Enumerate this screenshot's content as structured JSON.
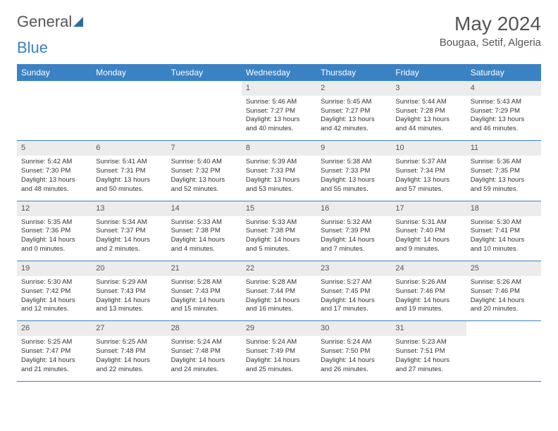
{
  "logo": {
    "text1": "General",
    "text2": "Blue"
  },
  "title": "May 2024",
  "location": "Bougaa, Setif, Algeria",
  "weekdays": [
    "Sunday",
    "Monday",
    "Tuesday",
    "Wednesday",
    "Thursday",
    "Friday",
    "Saturday"
  ],
  "colors": {
    "header_bg": "#3b82c4",
    "header_text": "#ffffff",
    "daynum_bg": "#ececec",
    "border": "#3b82c4",
    "text": "#333333",
    "title_text": "#555555"
  },
  "rows": [
    {
      "nums": [
        "",
        "",
        "",
        "1",
        "2",
        "3",
        "4"
      ],
      "cells": [
        null,
        null,
        null,
        {
          "sunrise": "5:46 AM",
          "sunset": "7:27 PM",
          "daylight": "13 hours and 40 minutes."
        },
        {
          "sunrise": "5:45 AM",
          "sunset": "7:27 PM",
          "daylight": "13 hours and 42 minutes."
        },
        {
          "sunrise": "5:44 AM",
          "sunset": "7:28 PM",
          "daylight": "13 hours and 44 minutes."
        },
        {
          "sunrise": "5:43 AM",
          "sunset": "7:29 PM",
          "daylight": "13 hours and 46 minutes."
        }
      ]
    },
    {
      "nums": [
        "5",
        "6",
        "7",
        "8",
        "9",
        "10",
        "11"
      ],
      "cells": [
        {
          "sunrise": "5:42 AM",
          "sunset": "7:30 PM",
          "daylight": "13 hours and 48 minutes."
        },
        {
          "sunrise": "5:41 AM",
          "sunset": "7:31 PM",
          "daylight": "13 hours and 50 minutes."
        },
        {
          "sunrise": "5:40 AM",
          "sunset": "7:32 PM",
          "daylight": "13 hours and 52 minutes."
        },
        {
          "sunrise": "5:39 AM",
          "sunset": "7:33 PM",
          "daylight": "13 hours and 53 minutes."
        },
        {
          "sunrise": "5:38 AM",
          "sunset": "7:33 PM",
          "daylight": "13 hours and 55 minutes."
        },
        {
          "sunrise": "5:37 AM",
          "sunset": "7:34 PM",
          "daylight": "13 hours and 57 minutes."
        },
        {
          "sunrise": "5:36 AM",
          "sunset": "7:35 PM",
          "daylight": "13 hours and 59 minutes."
        }
      ]
    },
    {
      "nums": [
        "12",
        "13",
        "14",
        "15",
        "16",
        "17",
        "18"
      ],
      "cells": [
        {
          "sunrise": "5:35 AM",
          "sunset": "7:36 PM",
          "daylight": "14 hours and 0 minutes."
        },
        {
          "sunrise": "5:34 AM",
          "sunset": "7:37 PM",
          "daylight": "14 hours and 2 minutes."
        },
        {
          "sunrise": "5:33 AM",
          "sunset": "7:38 PM",
          "daylight": "14 hours and 4 minutes."
        },
        {
          "sunrise": "5:33 AM",
          "sunset": "7:38 PM",
          "daylight": "14 hours and 5 minutes."
        },
        {
          "sunrise": "5:32 AM",
          "sunset": "7:39 PM",
          "daylight": "14 hours and 7 minutes."
        },
        {
          "sunrise": "5:31 AM",
          "sunset": "7:40 PM",
          "daylight": "14 hours and 9 minutes."
        },
        {
          "sunrise": "5:30 AM",
          "sunset": "7:41 PM",
          "daylight": "14 hours and 10 minutes."
        }
      ]
    },
    {
      "nums": [
        "19",
        "20",
        "21",
        "22",
        "23",
        "24",
        "25"
      ],
      "cells": [
        {
          "sunrise": "5:30 AM",
          "sunset": "7:42 PM",
          "daylight": "14 hours and 12 minutes."
        },
        {
          "sunrise": "5:29 AM",
          "sunset": "7:43 PM",
          "daylight": "14 hours and 13 minutes."
        },
        {
          "sunrise": "5:28 AM",
          "sunset": "7:43 PM",
          "daylight": "14 hours and 15 minutes."
        },
        {
          "sunrise": "5:28 AM",
          "sunset": "7:44 PM",
          "daylight": "14 hours and 16 minutes."
        },
        {
          "sunrise": "5:27 AM",
          "sunset": "7:45 PM",
          "daylight": "14 hours and 17 minutes."
        },
        {
          "sunrise": "5:26 AM",
          "sunset": "7:46 PM",
          "daylight": "14 hours and 19 minutes."
        },
        {
          "sunrise": "5:26 AM",
          "sunset": "7:46 PM",
          "daylight": "14 hours and 20 minutes."
        }
      ]
    },
    {
      "nums": [
        "26",
        "27",
        "28",
        "29",
        "30",
        "31",
        ""
      ],
      "cells": [
        {
          "sunrise": "5:25 AM",
          "sunset": "7:47 PM",
          "daylight": "14 hours and 21 minutes."
        },
        {
          "sunrise": "5:25 AM",
          "sunset": "7:48 PM",
          "daylight": "14 hours and 22 minutes."
        },
        {
          "sunrise": "5:24 AM",
          "sunset": "7:48 PM",
          "daylight": "14 hours and 24 minutes."
        },
        {
          "sunrise": "5:24 AM",
          "sunset": "7:49 PM",
          "daylight": "14 hours and 25 minutes."
        },
        {
          "sunrise": "5:24 AM",
          "sunset": "7:50 PM",
          "daylight": "14 hours and 26 minutes."
        },
        {
          "sunrise": "5:23 AM",
          "sunset": "7:51 PM",
          "daylight": "14 hours and 27 minutes."
        },
        null
      ]
    }
  ],
  "labels": {
    "sunrise": "Sunrise: ",
    "sunset": "Sunset: ",
    "daylight": "Daylight: "
  }
}
